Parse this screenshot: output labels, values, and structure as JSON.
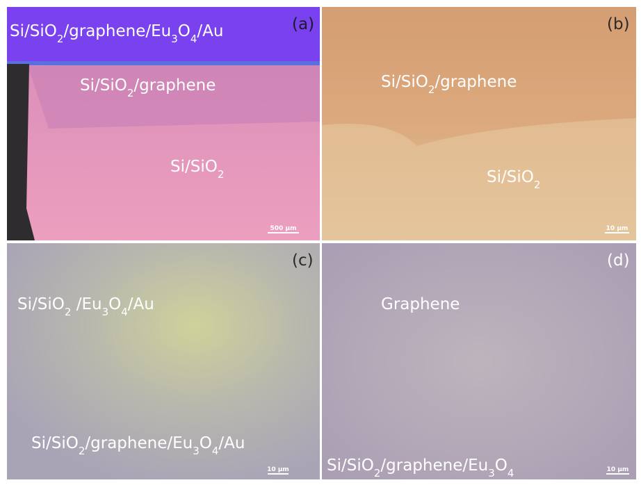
{
  "panels": [
    {
      "label": "(a)",
      "scale_bar": "500 µm",
      "regions": [
        [
          {
            "t": "Si/SiO"
          },
          {
            "sub": "2"
          },
          {
            "t": "/graphene/Eu"
          },
          {
            "sub": "3"
          },
          {
            "t": "O"
          },
          {
            "sub": "4"
          },
          {
            "t": "/Au"
          }
        ],
        [
          {
            "t": "Si/SiO"
          },
          {
            "sub": "2"
          },
          {
            "t": "/graphene"
          }
        ],
        [
          {
            "t": "Si/SiO"
          },
          {
            "sub": "2"
          }
        ]
      ]
    },
    {
      "label": "(b)",
      "scale_bar": "10 µm",
      "regions": [
        [
          {
            "t": "Si/SiO"
          },
          {
            "sub": "2"
          },
          {
            "t": "/graphene"
          }
        ],
        [
          {
            "t": "Si/SiO"
          },
          {
            "sub": "2"
          }
        ]
      ]
    },
    {
      "label": "(c)",
      "scale_bar": "10 µm",
      "regions": [
        [
          {
            "t": "Si/SiO"
          },
          {
            "sub": "2"
          },
          {
            "t": " /Eu"
          },
          {
            "sub": "3"
          },
          {
            "t": "O"
          },
          {
            "sub": "4"
          },
          {
            "t": "/Au"
          }
        ],
        [
          {
            "t": "Si/SiO"
          },
          {
            "sub": "2"
          },
          {
            "t": "/graphene/Eu"
          },
          {
            "sub": "3"
          },
          {
            "t": "O"
          },
          {
            "sub": "4"
          },
          {
            "t": "/Au"
          }
        ]
      ]
    },
    {
      "label": "(d)",
      "scale_bar": "10 µm",
      "regions": [
        [
          {
            "t": "Graphene"
          }
        ],
        [
          {
            "t": "Si/SiO"
          },
          {
            "sub": "2"
          },
          {
            "t": "/graphene/Eu"
          },
          {
            "sub": "3"
          },
          {
            "t": "O"
          },
          {
            "sub": "4"
          }
        ]
      ]
    }
  ]
}
